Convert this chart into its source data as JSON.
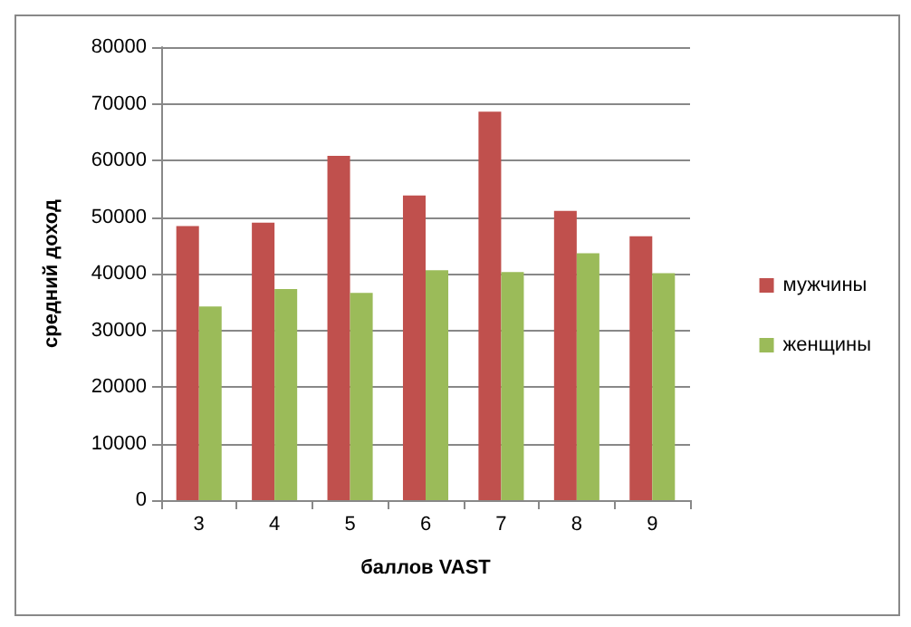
{
  "chart_data": {
    "type": "bar",
    "xlabel": "баллов VAST",
    "ylabel": "средний доход",
    "categories": [
      "3",
      "4",
      "5",
      "6",
      "7",
      "8",
      "9"
    ],
    "series": [
      {
        "name": "мужчины",
        "color": "#c0504d",
        "values": [
          48400,
          49000,
          60800,
          53800,
          68600,
          51100,
          46600
        ]
      },
      {
        "name": "женщины",
        "color": "#9bbb59",
        "values": [
          34200,
          37300,
          36600,
          40600,
          40300,
          43600,
          40100
        ]
      }
    ],
    "ylim": [
      0,
      80000
    ],
    "yticks": [
      0,
      10000,
      20000,
      30000,
      40000,
      50000,
      60000,
      70000,
      80000
    ],
    "grid": "y",
    "legend": "right"
  }
}
